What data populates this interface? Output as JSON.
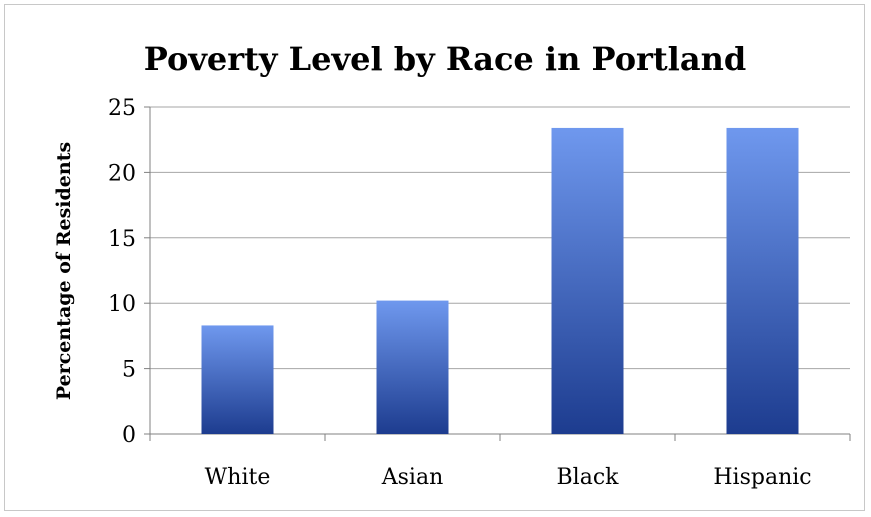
{
  "chart_data": {
    "type": "bar",
    "title": "Poverty Level by Race in Portland",
    "xlabel": "",
    "ylabel": "Percentage of Residents",
    "categories": [
      "White",
      "Asian",
      "Black",
      "Hispanic"
    ],
    "values": [
      8.3,
      10.2,
      23.4,
      23.4
    ],
    "ylim": [
      0,
      25
    ],
    "yticks": [
      "0",
      "5",
      "10",
      "15",
      "20",
      "25"
    ],
    "grid": true,
    "legend": "none",
    "colors": {
      "bar_top": "#6f98ee",
      "bar_bottom": "#1d3c8f",
      "grid": "#a6a6a6",
      "axis": "#808080"
    }
  }
}
